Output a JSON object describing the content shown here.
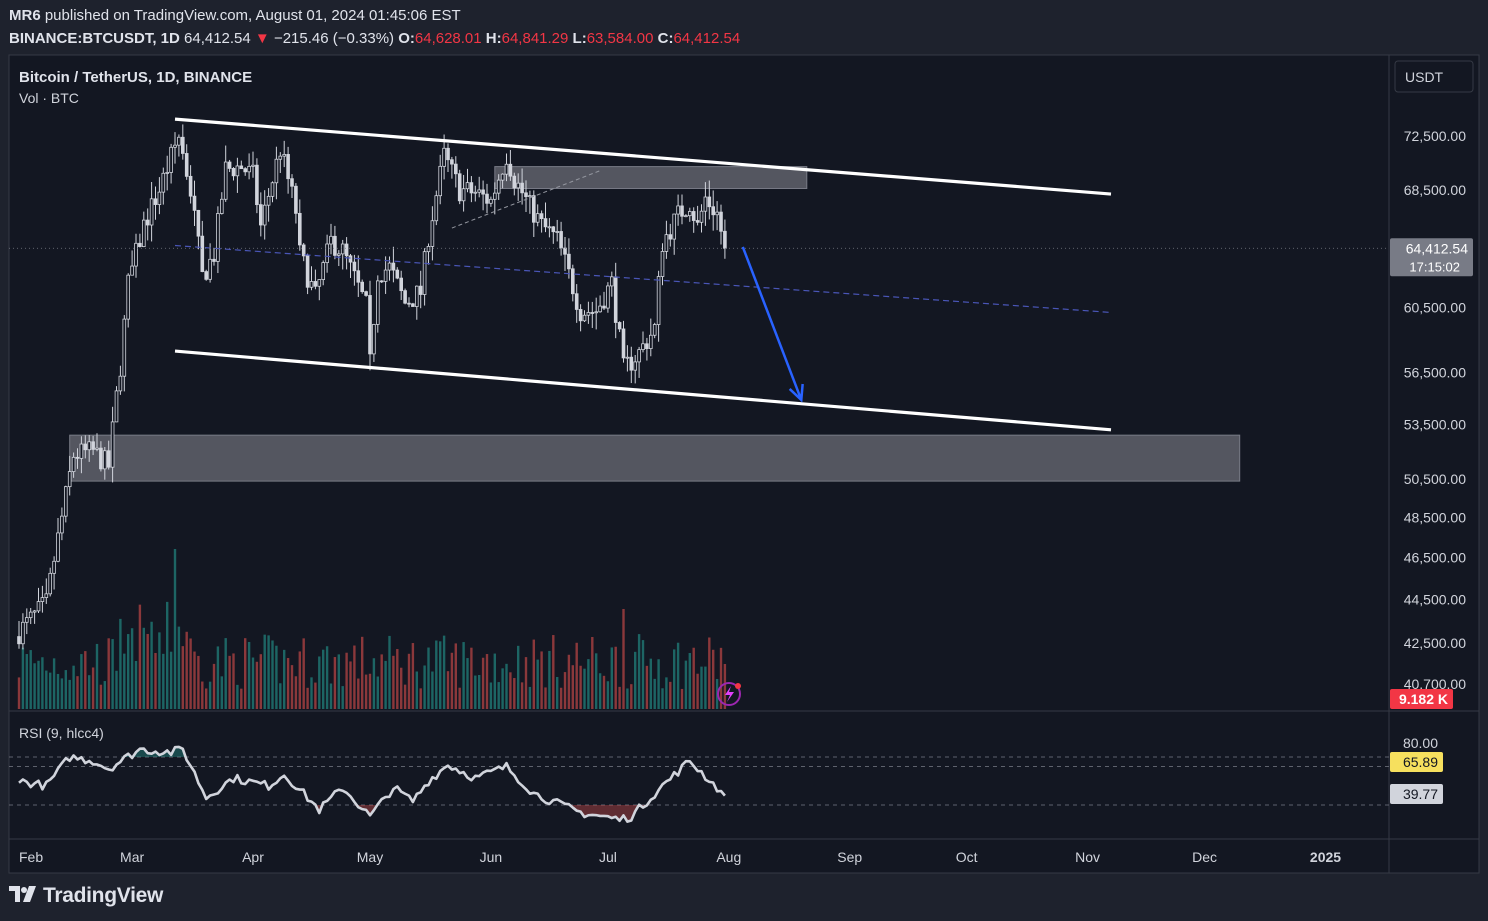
{
  "header": {
    "publisher": "MR6",
    "published_text": "published on TradingView.com, August 01, 2024 01:45:06 EST",
    "symbol": "BINANCE:BTCUSDT, 1D",
    "last": "64,412.54",
    "change_arrow": "▼",
    "change": "−215.46 (−0.33%)",
    "o_label": "O:",
    "o": "64,628.01",
    "h_label": "H:",
    "h": "64,841.29",
    "l_label": "L:",
    "l": "63,584.00",
    "c_label": "C:",
    "c": "64,412.54"
  },
  "legend": {
    "title": "Bitcoin / TetherUS, 1D, BINANCE",
    "vol": "Vol · BTC",
    "rsi": "RSI (9, hlcc4)"
  },
  "price_axis": {
    "currency": "USDT",
    "last_price_label": "64,412.54",
    "countdown": "17:15:02",
    "volume_label": "9.182 K",
    "rsi_labels": {
      "upper": "80.00",
      "value1": "65.89",
      "value2": "39.77"
    }
  },
  "footer": {
    "brand": "TradingView",
    "brand_icon": "tradingview-logo-icon"
  },
  "colors": {
    "background": "#131722",
    "frame": "#1e222d",
    "up": "#d1d4dc",
    "down": "#d1d4dc",
    "vol_up": "#26a69a",
    "vol_down": "#ef5350",
    "rsi_line": "#d1d4dc",
    "zone": "#5d6069",
    "channel": "#ffffff",
    "arrow": "#2962ff",
    "mid_line": "#4a56b8",
    "rsi_value1_bg": "#f6e05e",
    "volume_label_bg": "#f23645"
  },
  "chart_data": {
    "type": "candlestick",
    "title": "Bitcoin / TetherUS, 1D, BINANCE",
    "y_scale": "log",
    "y_ticks": [
      72500,
      68500,
      64412.54,
      60500,
      56500,
      53500,
      50500,
      48500,
      46500,
      44500,
      42500,
      40700
    ],
    "y_tick_labels": [
      "72,500.00",
      "68,500.00",
      "",
      "60,500.00",
      "56,500.00",
      "53,500.00",
      "50,500.00",
      "48,500.00",
      "46,500.00",
      "44,500.00",
      "42,500.00",
      "40,700.00"
    ],
    "x_ticks": [
      "Feb",
      "Mar",
      "Apr",
      "May",
      "Jun",
      "Jul",
      "Aug",
      "Sep",
      "Oct",
      "Nov",
      "Dec",
      "2025"
    ],
    "x_range": [
      "2024-02-01",
      "2025-01-20"
    ],
    "last_price": 64412.54,
    "close_waypoints": [
      [
        "2024-02-01",
        43000
      ],
      [
        "2024-02-08",
        44300
      ],
      [
        "2024-02-12",
        48500
      ],
      [
        "2024-02-15",
        51800
      ],
      [
        "2024-02-20",
        52000
      ],
      [
        "2024-02-24",
        51200
      ],
      [
        "2024-02-27",
        57000
      ],
      [
        "2024-02-29",
        62000
      ],
      [
        "2024-03-04",
        66000
      ],
      [
        "2024-03-08",
        68500
      ],
      [
        "2024-03-13",
        72500
      ],
      [
        "2024-03-16",
        68500
      ],
      [
        "2024-03-19",
        62500
      ],
      [
        "2024-03-22",
        64000
      ],
      [
        "2024-03-25",
        70000
      ],
      [
        "2024-03-29",
        70200
      ],
      [
        "2024-04-01",
        69500
      ],
      [
        "2024-04-03",
        65900
      ],
      [
        "2024-04-08",
        71500
      ],
      [
        "2024-04-12",
        67000
      ],
      [
        "2024-04-13",
        64000
      ],
      [
        "2024-04-17",
        61200
      ],
      [
        "2024-04-21",
        64900
      ],
      [
        "2024-04-24",
        64200
      ],
      [
        "2024-04-30",
        60600
      ],
      [
        "2024-05-01",
        57000
      ],
      [
        "2024-05-03",
        62800
      ],
      [
        "2024-05-06",
        63100
      ],
      [
        "2024-05-10",
        60800
      ],
      [
        "2024-05-14",
        61500
      ],
      [
        "2024-05-16",
        65300
      ],
      [
        "2024-05-20",
        71000
      ],
      [
        "2024-05-24",
        68500
      ],
      [
        "2024-05-28",
        68300
      ],
      [
        "2024-06-01",
        67700
      ],
      [
        "2024-06-05",
        71100
      ],
      [
        "2024-06-07",
        69300
      ],
      [
        "2024-06-11",
        67300
      ],
      [
        "2024-06-14",
        66000
      ],
      [
        "2024-06-18",
        65000
      ],
      [
        "2024-06-24",
        60300
      ],
      [
        "2024-06-28",
        60300
      ],
      [
        "2024-07-02",
        62100
      ],
      [
        "2024-07-05",
        56700
      ],
      [
        "2024-07-09",
        57700
      ],
      [
        "2024-07-13",
        59200
      ],
      [
        "2024-07-15",
        64800
      ],
      [
        "2024-07-19",
        66700
      ],
      [
        "2024-07-22",
        67600
      ],
      [
        "2024-07-24",
        65900
      ],
      [
        "2024-07-26",
        67900
      ],
      [
        "2024-07-29",
        66800
      ],
      [
        "2024-07-31",
        64412.54
      ]
    ],
    "volume_unit": "K BTC",
    "last_volume": 9.182,
    "rsi": {
      "name": "RSI (9, hlcc4)",
      "levels": [
        80,
        70,
        30
      ],
      "value": 39.77,
      "secondary_value": 65.89,
      "waypoints": [
        [
          "2024-02-01",
          55
        ],
        [
          "2024-02-08",
          50
        ],
        [
          "2024-02-14",
          80
        ],
        [
          "2024-02-20",
          76
        ],
        [
          "2024-02-24",
          68
        ],
        [
          "2024-03-03",
          88
        ],
        [
          "2024-03-11",
          85
        ],
        [
          "2024-03-14",
          88
        ],
        [
          "2024-03-20",
          38
        ],
        [
          "2024-03-27",
          58
        ],
        [
          "2024-04-05",
          50
        ],
        [
          "2024-04-09",
          62
        ],
        [
          "2024-04-13",
          46
        ],
        [
          "2024-04-18",
          25
        ],
        [
          "2024-04-24",
          48
        ],
        [
          "2024-05-01",
          18
        ],
        [
          "2024-05-07",
          48
        ],
        [
          "2024-05-12",
          34
        ],
        [
          "2024-05-16",
          55
        ],
        [
          "2024-05-21",
          72
        ],
        [
          "2024-05-28",
          58
        ],
        [
          "2024-06-05",
          70
        ],
        [
          "2024-06-12",
          42
        ],
        [
          "2024-06-19",
          30
        ],
        [
          "2024-06-24",
          22
        ],
        [
          "2024-07-04",
          15
        ],
        [
          "2024-07-07",
          18
        ],
        [
          "2024-07-15",
          50
        ],
        [
          "2024-07-22",
          76
        ],
        [
          "2024-07-26",
          60
        ],
        [
          "2024-07-31",
          40
        ]
      ]
    },
    "annotations": {
      "channel_upper": [
        [
          "2024-03-12",
          73800
        ],
        [
          "2024-11-07",
          68200
        ]
      ],
      "channel_lower": [
        [
          "2024-03-12",
          57800
        ],
        [
          "2024-11-07",
          53200
        ]
      ],
      "channel_mid": [
        [
          "2024-03-12",
          64600
        ],
        [
          "2024-11-07",
          60200
        ]
      ],
      "trend_dashed": [
        [
          "2024-05-22",
          65800
        ],
        [
          "2024-06-29",
          69900
        ]
      ],
      "zone_resistance": {
        "from": "2024-06-02",
        "to": "2024-08-21",
        "top": 70200,
        "bottom": 68600
      },
      "zone_support": {
        "from": "2024-02-14",
        "to": "2024-12-10",
        "top": 52900,
        "bottom": 50400
      },
      "arrow": {
        "from": [
          "2024-08-01",
          64500
        ],
        "to": [
          "2024-08-16",
          54900
        ]
      }
    }
  }
}
